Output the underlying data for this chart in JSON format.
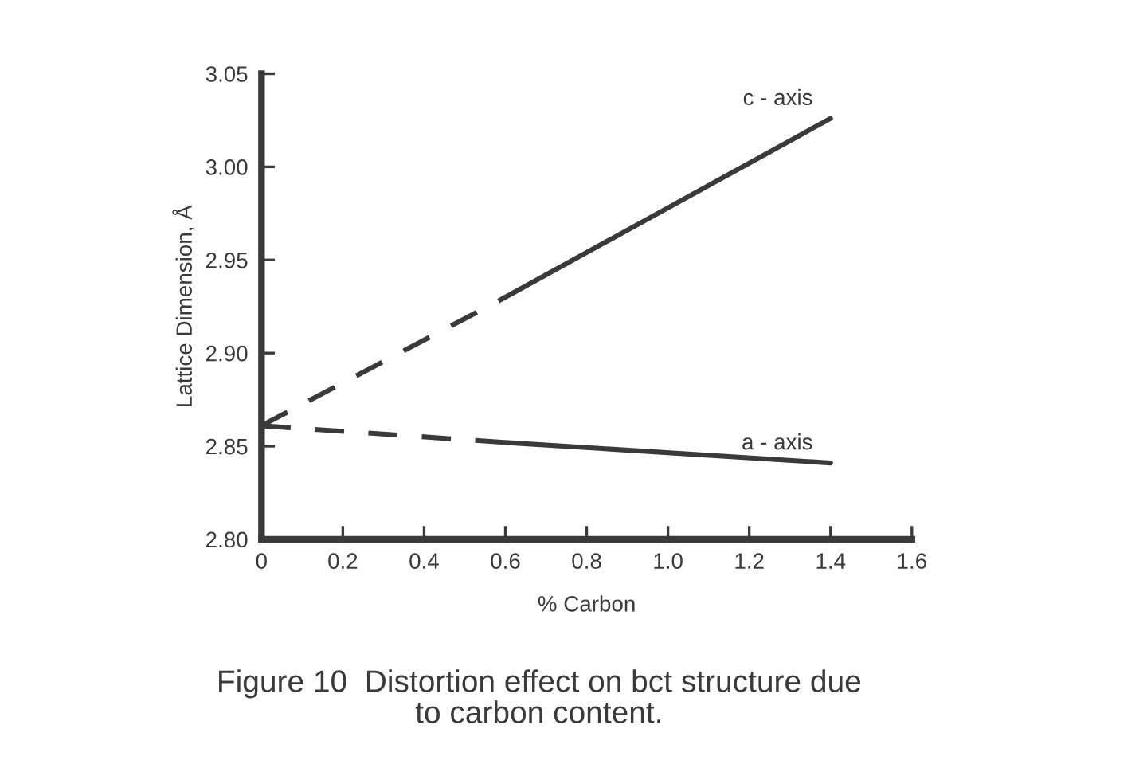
{
  "chart_data": {
    "type": "line",
    "title": "Figure 10  Distortion effect on bct structure due\nto carbon content.",
    "xlabel": "% Carbon",
    "ylabel": "Lattice Dimension, Å",
    "series": [
      {
        "name": "c - axis",
        "color": "#3a3a3a",
        "line_style": "solid",
        "x": [
          0.6,
          1.4
        ],
        "values": [
          2.93,
          3.026
        ]
      },
      {
        "color": "#3a3a3a",
        "line_style": "dashed",
        "x": [
          0,
          0.6
        ],
        "values": [
          2.861,
          2.93
        ]
      },
      {
        "name": "a - axis",
        "color": "#3a3a3a",
        "line_style": "solid",
        "x": [
          0.6,
          1.4
        ],
        "values": [
          2.852,
          2.841
        ]
      },
      {
        "color": "#3a3a3a",
        "line_style": "dashed",
        "x": [
          0,
          0.6
        ],
        "values": [
          2.861,
          2.852
        ]
      }
    ],
    "xlim": [
      0,
      1.6
    ],
    "xticks": [
      0,
      0.2,
      0.4,
      0.6,
      0.8,
      {
        "value": 1,
        "label": "1.0"
      },
      1.2,
      1.4,
      1.6
    ],
    "ylim": [
      2.8,
      3.05
    ],
    "yticks": [
      {
        "value": 2.8,
        "label": "2.80"
      },
      2.85,
      {
        "value": 2.9,
        "label": "2.90"
      },
      2.95,
      {
        "value": 3.0,
        "label": "3.00"
      },
      3.05
    ],
    "grid": false,
    "legend": false,
    "marker": "none"
  }
}
